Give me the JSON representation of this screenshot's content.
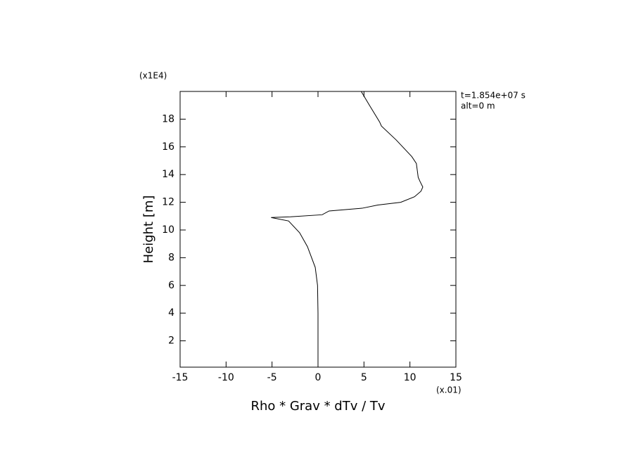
{
  "chart_data": {
    "type": "line",
    "xlabel": "Rho * Grav * dTv / Tv",
    "ylabel": "Height [m]",
    "x_multiplier": "(x.01)",
    "y_multiplier": "(x1E4)",
    "annotations": [
      "t=1.854e+07 s",
      "alt=0 m"
    ],
    "xlim": [
      -15,
      15
    ],
    "ylim": [
      0.1,
      20
    ],
    "xticks": [
      -15,
      -10,
      -5,
      0,
      5,
      10,
      15
    ],
    "yticks": [
      2,
      4,
      6,
      8,
      10,
      12,
      14,
      16,
      18
    ],
    "series": [
      {
        "color": "#000000",
        "x": [
          0,
          0,
          -0.05,
          -0.3,
          -1.15,
          -2,
          -3.2,
          -5.1,
          -3,
          0.45,
          1.2,
          4.8,
          6.5,
          9.0,
          10.5,
          11.2,
          11.4,
          11.1,
          10.9,
          10.7,
          10.2,
          8.5,
          6.9,
          6.7,
          5.6,
          4.7
        ],
        "values": [
          0.2,
          4,
          6,
          7.3,
          8.8,
          9.8,
          10.65,
          10.9,
          10.95,
          11.1,
          11.37,
          11.57,
          11.8,
          12.0,
          12.4,
          12.8,
          13.1,
          13.5,
          13.8,
          14.8,
          15.3,
          16.5,
          17.5,
          17.8,
          19.0,
          20
        ]
      }
    ]
  }
}
